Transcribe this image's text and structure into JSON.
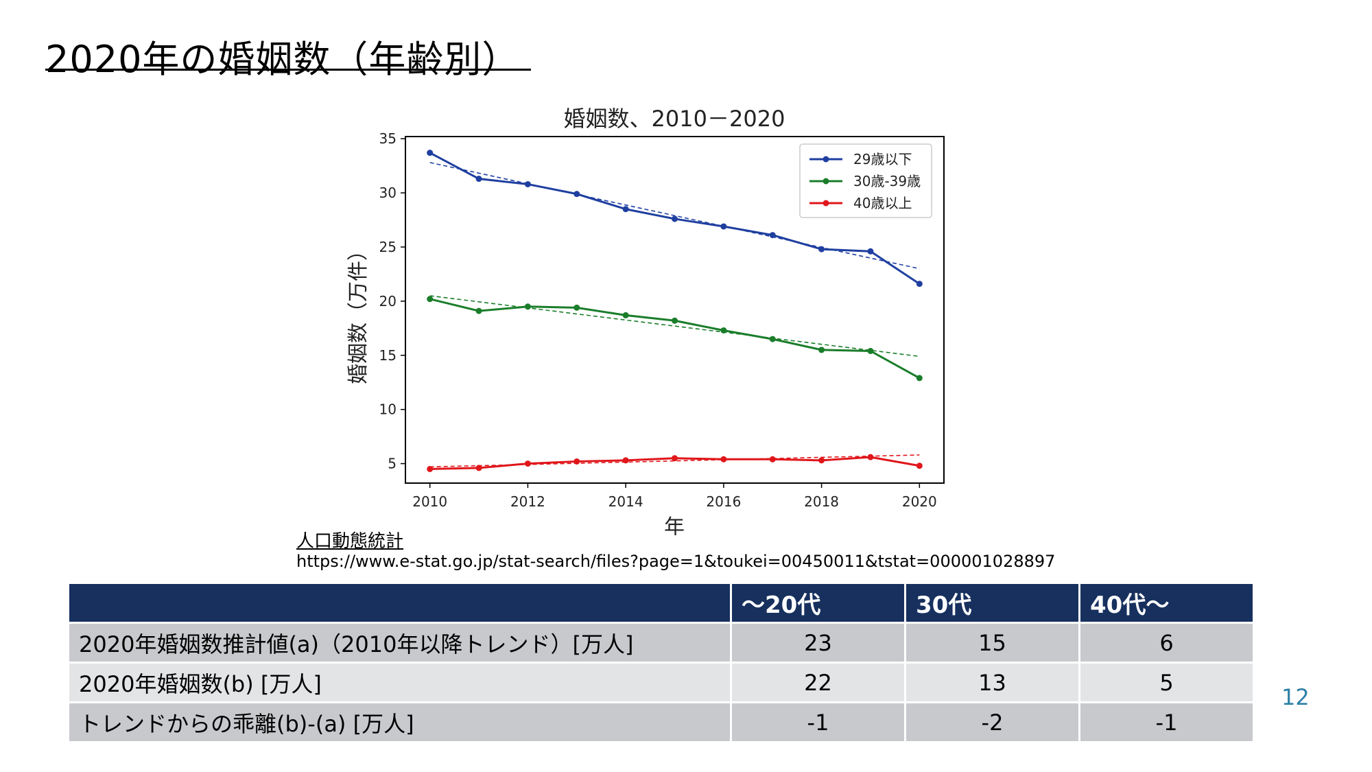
{
  "slide": {
    "title": "2020年の婚姻数（年齢別）",
    "page_number": "12"
  },
  "source": {
    "label": "人口動態統計",
    "url": "https://www.e-stat.go.jp/stat-search/files?page=1&toukei=00450011&tstat=000001028897"
  },
  "chart_data": {
    "type": "line",
    "title": "婚姻数、2010－2020",
    "xlabel": "年",
    "ylabel": "婚姻数（万件）",
    "xlim": [
      2009.5,
      2020.5
    ],
    "ylim": [
      3.2,
      35.2
    ],
    "x_ticks": [
      2010,
      2012,
      2014,
      2016,
      2018,
      2020
    ],
    "y_ticks": [
      5,
      10,
      15,
      20,
      25,
      30,
      35
    ],
    "legend_position": "top-right",
    "x": [
      2010,
      2011,
      2012,
      2013,
      2014,
      2015,
      2016,
      2017,
      2018,
      2019,
      2020
    ],
    "series": [
      {
        "name": "29歳以下",
        "color": "#1f3fa0",
        "values": [
          33.7,
          31.3,
          30.8,
          29.9,
          28.5,
          27.6,
          26.9,
          26.1,
          24.8,
          24.6,
          21.6
        ],
        "trend": [
          32.8,
          23.0
        ]
      },
      {
        "name": "30歳-39歳",
        "color": "#1a7d2a",
        "values": [
          20.2,
          19.1,
          19.5,
          19.4,
          18.7,
          18.2,
          17.3,
          16.5,
          15.5,
          15.4,
          12.9
        ],
        "trend": [
          20.5,
          14.9
        ]
      },
      {
        "name": "40歳以上",
        "color": "#e0161b",
        "values": [
          4.5,
          4.6,
          5.0,
          5.2,
          5.3,
          5.5,
          5.4,
          5.4,
          5.3,
          5.6,
          4.8
        ],
        "trend": [
          4.7,
          5.8
        ]
      }
    ]
  },
  "table": {
    "headers": [
      "",
      "～20代",
      "30代",
      "40代～"
    ],
    "rows": [
      {
        "label": "2020年婚姻数推計値(a)（2010年以降トレンド）[万人]",
        "values": [
          "23",
          "15",
          "6"
        ]
      },
      {
        "label": "2020年婚姻数(b) [万人]",
        "values": [
          "22",
          "13",
          "5"
        ]
      },
      {
        "label": "トレンドからの乖離(b)-(a) [万人]",
        "values": [
          "-1",
          "-2",
          "-1"
        ]
      }
    ]
  }
}
